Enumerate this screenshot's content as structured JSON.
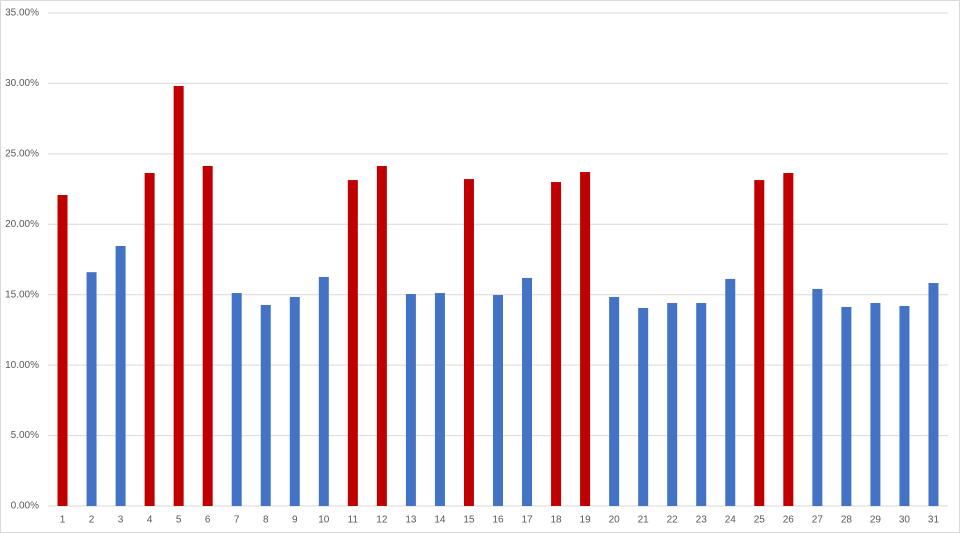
{
  "chart_data": {
    "type": "bar",
    "categories": [
      "1",
      "2",
      "3",
      "4",
      "5",
      "6",
      "7",
      "8",
      "9",
      "10",
      "11",
      "12",
      "13",
      "14",
      "15",
      "16",
      "17",
      "18",
      "19",
      "20",
      "21",
      "22",
      "23",
      "24",
      "25",
      "26",
      "27",
      "28",
      "29",
      "30",
      "31"
    ],
    "values": [
      22.08,
      16.6,
      18.46,
      23.64,
      29.82,
      24.14,
      15.12,
      14.27,
      14.84,
      16.26,
      23.14,
      24.14,
      15.05,
      15.12,
      23.21,
      14.98,
      16.19,
      23.0,
      23.71,
      14.84,
      14.06,
      14.41,
      14.41,
      16.12,
      23.14,
      23.64,
      15.41,
      14.13,
      14.41,
      14.2,
      15.83
    ],
    "colors": [
      "#c00000",
      "#4472c4",
      "#4472c4",
      "#c00000",
      "#c00000",
      "#c00000",
      "#4472c4",
      "#4472c4",
      "#4472c4",
      "#4472c4",
      "#c00000",
      "#c00000",
      "#4472c4",
      "#4472c4",
      "#c00000",
      "#4472c4",
      "#4472c4",
      "#c00000",
      "#c00000",
      "#4472c4",
      "#4472c4",
      "#4472c4",
      "#4472c4",
      "#4472c4",
      "#c00000",
      "#c00000",
      "#4472c4",
      "#4472c4",
      "#4472c4",
      "#4472c4",
      "#4472c4"
    ],
    "ylim": [
      0,
      35
    ],
    "yticks": [
      {
        "value": 0,
        "label": "0.00%"
      },
      {
        "value": 5,
        "label": "5.00%"
      },
      {
        "value": 10,
        "label": "10.00%"
      },
      {
        "value": 15,
        "label": "15.00%"
      },
      {
        "value": 20,
        "label": "20.00%"
      },
      {
        "value": 25,
        "label": "25.00%"
      },
      {
        "value": 30,
        "label": "30.00%"
      },
      {
        "value": 35,
        "label": "35.00%"
      }
    ],
    "grid": true
  }
}
